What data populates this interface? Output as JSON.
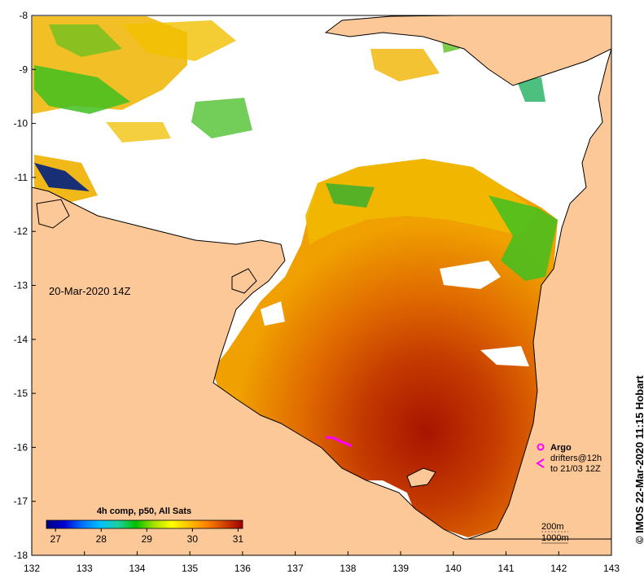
{
  "map": {
    "timestamp": "20-Mar-2020 14Z",
    "credit": "© IMOS 22-Mar-2020 11:15 Hobart",
    "x_axis": {
      "unit": "longitude",
      "ticks": [
        "132",
        "133",
        "134",
        "135",
        "136",
        "137",
        "138",
        "139",
        "140",
        "141",
        "142",
        "143"
      ]
    },
    "y_axis": {
      "unit": "latitude",
      "ticks": [
        "-8",
        "-9",
        "-10",
        "-11",
        "-12",
        "-13",
        "-14",
        "-15",
        "-16",
        "-17",
        "-18"
      ]
    },
    "colorbar": {
      "title": "4h comp, p50, All Sats",
      "ticks": [
        "27",
        "28",
        "29",
        "30",
        "31"
      ],
      "range": [
        26.8,
        31.1
      ],
      "colors": [
        "#000080",
        "#0000d0",
        "#0070ff",
        "#00c0ff",
        "#20d0a0",
        "#00c000",
        "#a0e000",
        "#ffff00",
        "#ffc000",
        "#ff8000",
        "#d04000",
        "#a00000"
      ]
    },
    "legend": {
      "argo_label": "Argo",
      "drifters_line1": "drifters@12h",
      "drifters_line2": "to 21/03 12Z"
    },
    "contours": {
      "depth_a": "200m",
      "depth_b": "1000m"
    },
    "colors": {
      "land": "#fcc897",
      "cloud": "#ffffff",
      "drifter": "#ff00ff",
      "coast": "#000000"
    }
  }
}
